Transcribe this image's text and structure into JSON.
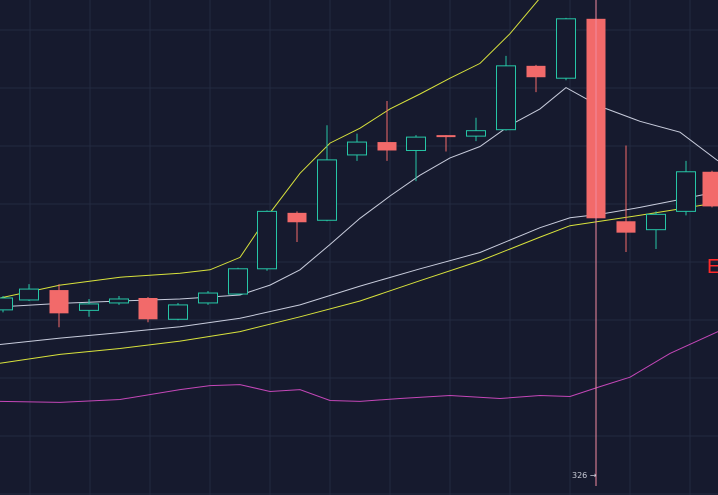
{
  "chart_data": {
    "type": "candlestick",
    "title": "",
    "xlabel": "",
    "ylabel": "",
    "ylim": [
      0,
      100
    ],
    "grid": true,
    "colors": {
      "background": "#161a2e",
      "grid": "#232a40",
      "up": "#26c6a6",
      "down": "#f26a6a",
      "crosshair": "#f28aa0",
      "upper_band": "#d8e23c",
      "middle_line": "#c8ccdc",
      "lower_band": "#d8e23c",
      "indicator": "#c447b8"
    },
    "candles": [
      {
        "x": 3,
        "open": 37.4,
        "close": 39.8,
        "high": 40.2,
        "low": 36.9
      },
      {
        "x": 29,
        "open": 39.4,
        "close": 41.6,
        "high": 42.6,
        "low": 39.2
      },
      {
        "x": 59,
        "open": 41.4,
        "close": 36.7,
        "high": 42.6,
        "low": 33.9
      },
      {
        "x": 89,
        "open": 37.3,
        "close": 38.6,
        "high": 39.6,
        "low": 36.0
      },
      {
        "x": 119,
        "open": 38.8,
        "close": 39.6,
        "high": 40.2,
        "low": 38.4
      },
      {
        "x": 148,
        "open": 39.8,
        "close": 35.5,
        "high": 40.0,
        "low": 34.9
      },
      {
        "x": 178,
        "open": 35.5,
        "close": 38.4,
        "high": 38.8,
        "low": 35.3
      },
      {
        "x": 208,
        "open": 38.8,
        "close": 40.8,
        "high": 41.2,
        "low": 38.4
      },
      {
        "x": 238,
        "open": 40.6,
        "close": 45.7,
        "high": 45.9,
        "low": 40.4
      },
      {
        "x": 267,
        "open": 45.7,
        "close": 57.3,
        "high": 57.5,
        "low": 45.3
      },
      {
        "x": 297,
        "open": 57.0,
        "close": 55.1,
        "high": 57.3,
        "low": 51.1
      },
      {
        "x": 327,
        "open": 55.5,
        "close": 67.7,
        "high": 74.7,
        "low": 55.3
      },
      {
        "x": 357,
        "open": 68.7,
        "close": 71.3,
        "high": 73.0,
        "low": 67.5
      },
      {
        "x": 387,
        "open": 71.3,
        "close": 69.6,
        "high": 79.6,
        "low": 67.5
      },
      {
        "x": 416,
        "open": 69.6,
        "close": 72.3,
        "high": 72.7,
        "low": 63.4
      },
      {
        "x": 446,
        "open": 72.7,
        "close": 72.3,
        "high": 72.7,
        "low": 69.4
      },
      {
        "x": 476,
        "open": 72.5,
        "close": 73.6,
        "high": 76.2,
        "low": 71.5
      },
      {
        "x": 506,
        "open": 73.8,
        "close": 86.7,
        "high": 88.7,
        "low": 73.6
      },
      {
        "x": 536,
        "open": 86.7,
        "close": 84.4,
        "high": 86.9,
        "low": 81.4
      },
      {
        "x": 566,
        "open": 84.2,
        "close": 96.2,
        "high": 96.4,
        "low": 83.8
      },
      {
        "x": 596,
        "open": 96.2,
        "close": 55.9,
        "high": 96.4,
        "low": 55.3
      },
      {
        "x": 626,
        "open": 55.3,
        "close": 53.0,
        "high": 70.6,
        "low": 49.1
      },
      {
        "x": 656,
        "open": 53.6,
        "close": 56.7,
        "high": 57.3,
        "low": 49.7
      },
      {
        "x": 686,
        "open": 57.3,
        "close": 65.3,
        "high": 67.5,
        "low": 56.5
      },
      {
        "x": 712,
        "open": 65.3,
        "close": 58.3,
        "high": 65.5,
        "low": 58.1
      }
    ],
    "lines": [
      {
        "key": "upper_band",
        "x": [
          0,
          60,
          120,
          180,
          210,
          240,
          270,
          300,
          330,
          360,
          390,
          420,
          450,
          480,
          510,
          540,
          566,
          600,
          640,
          680,
          718
        ],
        "y": [
          39.8,
          42.4,
          44.0,
          44.8,
          45.5,
          48.0,
          57.0,
          65.0,
          71.1,
          74.1,
          78.0,
          81.0,
          84.2,
          87.2,
          93.2,
          100.4,
          102.6,
          102.2,
          102.0,
          101.6,
          100.8
        ]
      },
      {
        "key": "middle_line",
        "x": [
          0,
          60,
          120,
          180,
          240,
          270,
          300,
          330,
          360,
          390,
          420,
          450,
          480,
          510,
          540,
          566,
          600,
          640,
          680,
          718
        ],
        "y": [
          38.0,
          38.7,
          39.2,
          39.6,
          40.4,
          42.4,
          45.5,
          50.6,
          55.9,
          60.4,
          64.6,
          68.1,
          70.4,
          74.7,
          78.0,
          82.3,
          78.5,
          75.5,
          73.3,
          67.5
        ]
      },
      {
        "key": "lower_band",
        "x": [
          0,
          60,
          120,
          180,
          240,
          300,
          360,
          420,
          480,
          540,
          570,
          600,
          640,
          680,
          718
        ],
        "y": [
          26.6,
          28.4,
          29.6,
          31.1,
          33.0,
          36.0,
          39.2,
          43.3,
          47.3,
          52.1,
          54.4,
          55.3,
          56.5,
          57.8,
          59.1
        ]
      },
      {
        "key": "middle_line",
        "x": [
          0,
          60,
          120,
          180,
          240,
          300,
          360,
          420,
          480,
          540,
          570,
          600,
          640,
          680,
          718
        ],
        "y": [
          30.4,
          31.7,
          32.8,
          34.0,
          35.7,
          38.4,
          42.2,
          45.7,
          49.0,
          54.0,
          56.0,
          56.7,
          58.1,
          59.7,
          61.3
        ]
      },
      {
        "key": "indicator",
        "x": [
          0,
          60,
          120,
          180,
          210,
          240,
          270,
          300,
          330,
          360,
          400,
          450,
          500,
          540,
          570,
          600,
          630,
          670,
          718
        ],
        "y": [
          18.9,
          18.7,
          19.3,
          21.3,
          22.1,
          22.3,
          20.9,
          21.3,
          19.1,
          18.9,
          19.5,
          20.1,
          19.5,
          20.1,
          19.9,
          21.9,
          23.8,
          28.6,
          33.0
        ]
      }
    ],
    "crosshair": {
      "x": 596,
      "label": "326"
    },
    "annotations": [
      {
        "text": "E"
      }
    ]
  }
}
